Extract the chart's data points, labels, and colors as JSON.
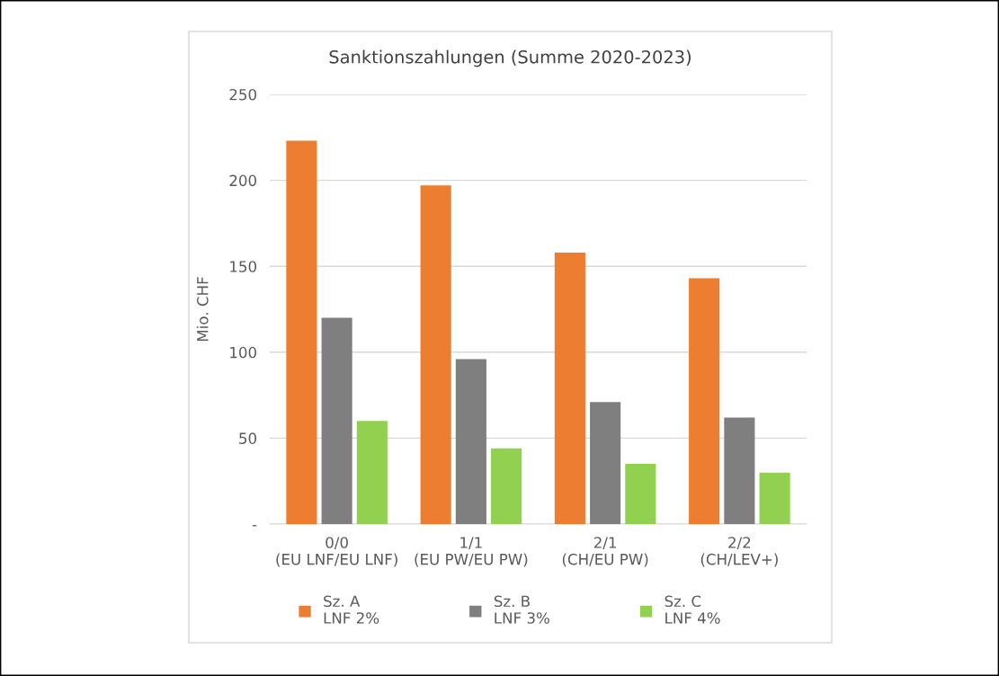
{
  "chart_data": {
    "type": "bar",
    "title": "Sanktionszahlungen (Summe 2020-2023)",
    "ylabel": "Mio. CHF",
    "categories": [
      "0/0\n(EU LNF/EU LNF)",
      "1/1\n(EU PW/EU PW)",
      "2/1\n(CH/EU PW)",
      "2/2\n(CH/LEV+)"
    ],
    "series": [
      {
        "name": "Sz. A\nLNF 2%",
        "color": "#ed7d31",
        "values": [
          223,
          197,
          158,
          143
        ]
      },
      {
        "name": "Sz. B\nLNF 3%",
        "color": "#7f7f7f",
        "values": [
          120,
          96,
          71,
          62
        ]
      },
      {
        "name": "Sz. C\nLNF 4%",
        "color": "#92d050",
        "values": [
          60,
          44,
          35,
          30
        ]
      }
    ],
    "ylim": [
      0,
      250
    ],
    "yticks": [
      {
        "value": 0,
        "label": "-"
      },
      50,
      100,
      150,
      200,
      250
    ],
    "grid": "y",
    "legend": "bottom"
  }
}
